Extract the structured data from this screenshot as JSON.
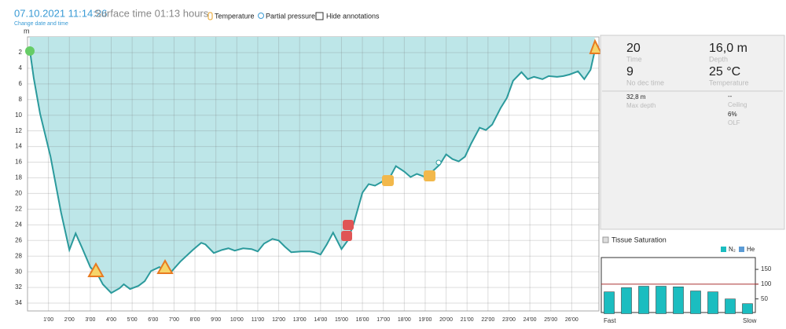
{
  "header": {
    "date": "07.10.2021 11:14:26",
    "surface_time": "Surface time 01:13 hours",
    "change_link": "Change date and time",
    "legend": [
      "Temperature",
      "Partial pressure"
    ],
    "hide_annotations": "Hide annotations"
  },
  "profile": {
    "type": "line",
    "y_label": "m",
    "xlim": [
      0,
      27.3
    ],
    "ylim": [
      0,
      35
    ],
    "y_inverted": true,
    "grid": true,
    "color": "#2b9a9c",
    "fill": "#bde6e8",
    "yticks": [
      2,
      4,
      6,
      8,
      10,
      12,
      14,
      16,
      18,
      20,
      22,
      24,
      26,
      28,
      30,
      32,
      34
    ],
    "xticks": [
      {
        "value": 1,
        "label": "1'00"
      },
      {
        "value": 2,
        "label": "2'00"
      },
      {
        "value": 3,
        "label": "3'00"
      },
      {
        "value": 4,
        "label": "4'00"
      },
      {
        "value": 5,
        "label": "5'00"
      },
      {
        "value": 6,
        "label": "6'00"
      },
      {
        "value": 7,
        "label": "7'00"
      },
      {
        "value": 8,
        "label": "8'00"
      },
      {
        "value": 9,
        "label": "9'00"
      },
      {
        "value": 10,
        "label": "10'00"
      },
      {
        "value": 11,
        "label": "11'00"
      },
      {
        "value": 12,
        "label": "12'00"
      },
      {
        "value": 13,
        "label": "13'00"
      },
      {
        "value": 14,
        "label": "14'00"
      },
      {
        "value": 15,
        "label": "15'00"
      },
      {
        "value": 16,
        "label": "16'00"
      },
      {
        "value": 17,
        "label": "17'00"
      },
      {
        "value": 18,
        "label": "18'00"
      },
      {
        "value": 19,
        "label": "19'00"
      },
      {
        "value": 20,
        "label": "20'00"
      },
      {
        "value": 21,
        "label": "21'00"
      },
      {
        "value": 22,
        "label": "22'00"
      },
      {
        "value": 23,
        "label": "23'00"
      },
      {
        "value": 24,
        "label": "24'00"
      },
      {
        "value": 25,
        "label": "25'00"
      },
      {
        "value": 26,
        "label": "26'00"
      }
    ],
    "x": [
      0.1,
      0.3,
      0.6,
      1.1,
      1.6,
      2.0,
      2.3,
      2.6,
      3.0,
      3.4,
      3.6,
      4.0,
      4.4,
      4.6,
      4.9,
      5.3,
      5.6,
      5.9,
      6.3,
      6.7,
      6.9,
      7.3,
      7.9,
      8.3,
      8.5,
      8.9,
      9.3,
      9.6,
      9.9,
      10.3,
      10.7,
      11.0,
      11.3,
      11.7,
      12.0,
      12.3,
      12.6,
      13.1,
      13.5,
      13.7,
      14.0,
      14.3,
      14.6,
      15.0,
      15.3,
      15.6,
      16.0,
      16.3,
      16.6,
      17.0,
      17.3,
      17.6,
      18.0,
      18.3,
      18.6,
      19.0,
      19.3,
      19.7,
      20.0,
      20.3,
      20.6,
      20.9,
      21.2,
      21.6,
      21.9,
      22.2,
      22.6,
      22.9,
      23.2,
      23.6,
      23.9,
      24.2,
      24.6,
      24.9,
      25.3,
      25.6,
      25.9,
      26.3,
      26.6,
      26.9,
      27.1
    ],
    "values": [
      1.5,
      5.3,
      9.8,
      15.3,
      22.4,
      27.2,
      25.1,
      26.9,
      29.4,
      30.6,
      31.6,
      32.7,
      32.1,
      31.6,
      32.2,
      31.8,
      31.2,
      29.9,
      29.4,
      30.1,
      29.9,
      28.7,
      27.2,
      26.3,
      26.5,
      27.6,
      27.2,
      27.0,
      27.3,
      27.0,
      27.1,
      27.4,
      26.4,
      25.8,
      26.0,
      26.8,
      27.5,
      27.4,
      27.4,
      27.5,
      27.8,
      26.5,
      25.0,
      27.1,
      26.0,
      23.7,
      19.9,
      18.8,
      19.0,
      18.4,
      18.0,
      16.5,
      17.2,
      17.9,
      17.5,
      17.9,
      17.3,
      16.3,
      15.0,
      15.6,
      15.9,
      15.3,
      13.6,
      11.6,
      11.9,
      11.2,
      9.1,
      7.8,
      5.6,
      4.5,
      5.4,
      5.1,
      5.4,
      5.0,
      5.1,
      5.0,
      4.8,
      4.4,
      5.4,
      4.2,
      1.8
    ]
  },
  "stats": {
    "items": [
      {
        "value": "20",
        "label": "Time"
      },
      {
        "value": "16,0 m",
        "label": "Depth"
      },
      {
        "value": "9",
        "label": "No dec time"
      },
      {
        "value": "25 °C",
        "label": "Temperature"
      }
    ],
    "details": [
      {
        "value": "32,8 m",
        "label": "Max depth"
      },
      {
        "value": "--",
        "label": "Ceiling"
      },
      {
        "value": "6%",
        "label": "OLF"
      }
    ]
  },
  "tissue": {
    "type": "bar",
    "title": "Tissue Saturation",
    "legend": [
      {
        "name": "N₂",
        "color": "#1bbdc0"
      },
      {
        "name": "He",
        "color": "#5b9bd5"
      }
    ],
    "values": [
      74,
      88,
      93,
      93,
      91,
      77,
      74,
      50,
      34
    ],
    "color": "#1bbdc0",
    "ylim": [
      0,
      190
    ],
    "yticks": [
      50,
      100,
      150
    ],
    "threshold": 100,
    "threshold_color": "#a33",
    "ends": [
      "Fast",
      "Slow"
    ]
  }
}
